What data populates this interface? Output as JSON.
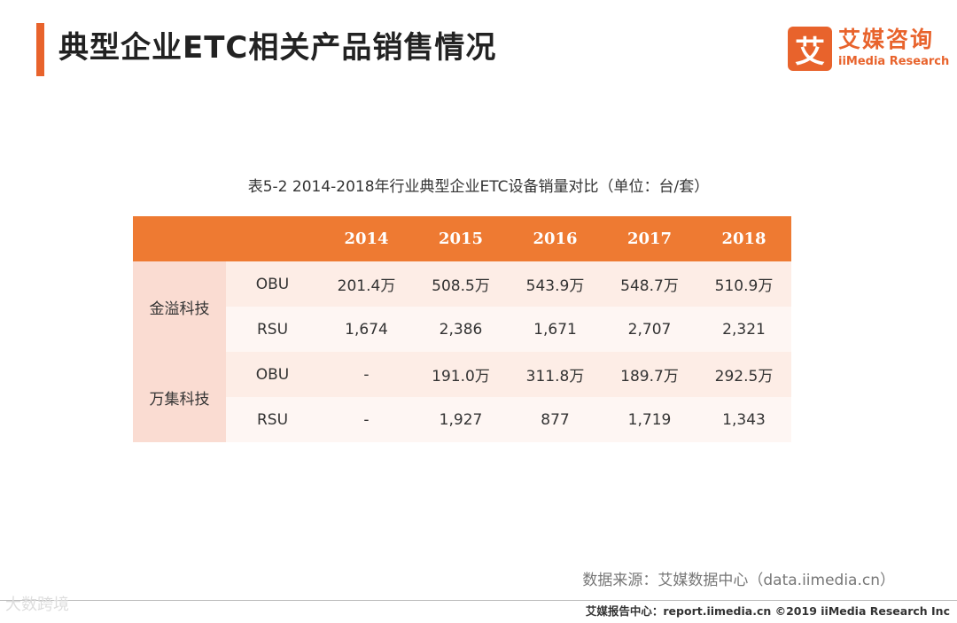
{
  "page": {
    "title": "典型企业ETC相关产品销售情况"
  },
  "brand": {
    "logo_char": "艾",
    "name_cn": "艾媒咨询",
    "name_en": "iiMedia Research",
    "accent_color": "#E8632C"
  },
  "colors": {
    "header_bg": "#EE7A32",
    "company_bg": "#FADCD2",
    "row_a_bg": "#FDEDE6",
    "row_b_bg": "#FEF6F3"
  },
  "chart_data": {
    "type": "table",
    "title": "表5-2 2014-2018年行业典型企业ETC设备销量对比（单位：台/套）",
    "columns": [
      "2014",
      "2015",
      "2016",
      "2017",
      "2018"
    ],
    "groups": [
      {
        "company": "金溢科技",
        "rows": [
          {
            "product": "OBU",
            "values": [
              "201.4万",
              "508.5万",
              "543.9万",
              "548.7万",
              "510.9万"
            ]
          },
          {
            "product": "RSU",
            "values": [
              "1,674",
              "2,386",
              "1,671",
              "2,707",
              "2,321"
            ]
          }
        ]
      },
      {
        "company": "万集科技",
        "rows": [
          {
            "product": "OBU",
            "values": [
              "-",
              "191.0万",
              "311.8万",
              "189.7万",
              "292.5万"
            ]
          },
          {
            "product": "RSU",
            "values": [
              "-",
              "1,927",
              "877",
              "1,719",
              "1,343"
            ]
          }
        ]
      }
    ]
  },
  "source": "数据来源：艾媒数据中心（data.iimedia.cn）",
  "footer": "艾媒报告中心：report.iimedia.cn  ©2019  iiMedia Research  Inc",
  "watermark": "大数跨境"
}
